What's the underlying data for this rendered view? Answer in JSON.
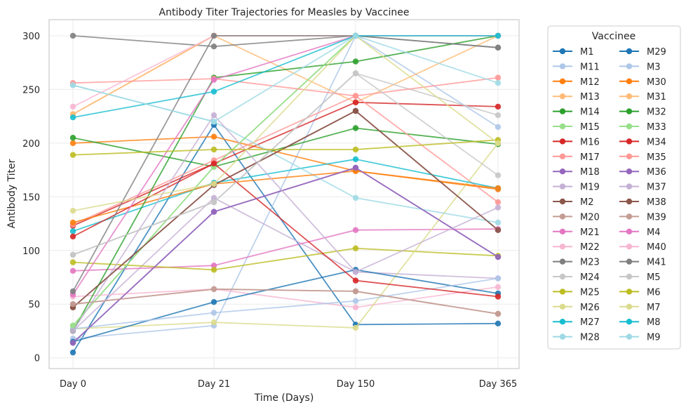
{
  "chart_data": {
    "type": "line",
    "title": "Antibody Titer Trajectories for Measles by Vaccinee",
    "xlabel": "Time (Days)",
    "ylabel": "Antibody Titer",
    "categories": [
      "Day 0",
      "Day 21",
      "Day 150",
      "Day 365"
    ],
    "yticks": [
      0,
      50,
      100,
      150,
      200,
      250,
      300
    ],
    "ylim": [
      -10,
      315
    ],
    "grid": true,
    "legend": {
      "title": "Vaccinee",
      "placement": "outside-right",
      "columns": 2
    },
    "series": [
      {
        "name": "M1",
        "color": "#1f77b4",
        "values": [
          5,
          217,
          31,
          32
        ]
      },
      {
        "name": "M11",
        "color": "#aec7e8",
        "values": [
          18,
          30,
          300,
          215
        ]
      },
      {
        "name": "M12",
        "color": "#ff7f0e",
        "values": [
          200,
          206,
          174,
          157
        ]
      },
      {
        "name": "M13",
        "color": "#ffbb78",
        "values": [
          227,
          300,
          238,
          300
        ]
      },
      {
        "name": "M14",
        "color": "#2ca02c",
        "values": [
          205,
          178,
          214,
          199
        ]
      },
      {
        "name": "M15",
        "color": "#98df8a",
        "values": [
          30,
          178,
          300,
          300
        ]
      },
      {
        "name": "M16",
        "color": "#d62728",
        "values": [
          123,
          181,
          238,
          234
        ]
      },
      {
        "name": "M17",
        "color": "#ff9896",
        "values": [
          124,
          184,
          244,
          145
        ]
      },
      {
        "name": "M18",
        "color": "#9467bd",
        "values": [
          14,
          136,
          177,
          94
        ]
      },
      {
        "name": "M19",
        "color": "#c5b0d5",
        "values": [
          25,
          149,
          80,
          74
        ]
      },
      {
        "name": "M2",
        "color": "#8c564b",
        "values": [
          47,
          161,
          230,
          119
        ]
      },
      {
        "name": "M20",
        "color": "#c49c94",
        "values": [
          50,
          64,
          62,
          41
        ]
      },
      {
        "name": "M21",
        "color": "#e377c2",
        "values": [
          81,
          86,
          119,
          120
        ]
      },
      {
        "name": "M22",
        "color": "#f7b6d2",
        "values": [
          57,
          64,
          47,
          66
        ]
      },
      {
        "name": "M23",
        "color": "#7f7f7f",
        "values": [
          300,
          290,
          300,
          289
        ]
      },
      {
        "name": "M24",
        "color": "#c7c7c7",
        "values": [
          96,
          145,
          265,
          226
        ]
      },
      {
        "name": "M25",
        "color": "#bcbd22",
        "values": [
          89,
          82,
          102,
          95
        ]
      },
      {
        "name": "M26",
        "color": "#dbdb8d",
        "values": [
          27,
          33,
          28,
          200
        ]
      },
      {
        "name": "M27",
        "color": "#17becf",
        "values": [
          118,
          163,
          185,
          158
        ]
      },
      {
        "name": "M28",
        "color": "#9edae5",
        "values": [
          254,
          220,
          149,
          126
        ]
      },
      {
        "name": "M29",
        "color": "#1f77b4",
        "values": [
          15,
          52,
          82,
          60
        ]
      },
      {
        "name": "M3",
        "color": "#aec7e8",
        "values": [
          27,
          42,
          53,
          74
        ]
      },
      {
        "name": "M30",
        "color": "#ff7f0e",
        "values": [
          126,
          162,
          174,
          158
        ]
      },
      {
        "name": "M31",
        "color": "#ffbb78",
        "values": [
          227,
          300,
          300,
          300
        ]
      },
      {
        "name": "M32",
        "color": "#2ca02c",
        "values": [
          25,
          261,
          276,
          300
        ]
      },
      {
        "name": "M33",
        "color": "#98df8a",
        "values": [
          30,
          178,
          300,
          300
        ]
      },
      {
        "name": "M34",
        "color": "#d62728",
        "values": [
          113,
          181,
          72,
          57
        ]
      },
      {
        "name": "M35",
        "color": "#ff9896",
        "values": [
          256,
          260,
          244,
          261
        ]
      },
      {
        "name": "M36",
        "color": "#9467bd",
        "values": [
          14,
          136,
          177,
          94
        ]
      },
      {
        "name": "M37",
        "color": "#c5b0d5",
        "values": [
          25,
          226,
          80,
          140
        ]
      },
      {
        "name": "M38",
        "color": "#8c564b",
        "values": [
          47,
          161,
          230,
          119
        ]
      },
      {
        "name": "M39",
        "color": "#c49c94",
        "values": [
          50,
          64,
          62,
          41
        ]
      },
      {
        "name": "M4",
        "color": "#e377c2",
        "values": [
          59,
          259,
          300,
          300
        ]
      },
      {
        "name": "M40",
        "color": "#f7b6d2",
        "values": [
          234,
          300,
          300,
          300
        ]
      },
      {
        "name": "M41",
        "color": "#7f7f7f",
        "values": [
          62,
          300,
          300,
          289
        ]
      },
      {
        "name": "M5",
        "color": "#c7c7c7",
        "values": [
          96,
          145,
          265,
          170
        ]
      },
      {
        "name": "M6",
        "color": "#bcbd22",
        "values": [
          189,
          194,
          194,
          203
        ]
      },
      {
        "name": "M7",
        "color": "#dbdb8d",
        "values": [
          137,
          162,
          300,
          200
        ]
      },
      {
        "name": "M8",
        "color": "#17becf",
        "values": [
          224,
          248,
          300,
          300
        ]
      },
      {
        "name": "M9",
        "color": "#9edae5",
        "values": [
          254,
          220,
          300,
          256
        ]
      }
    ]
  }
}
